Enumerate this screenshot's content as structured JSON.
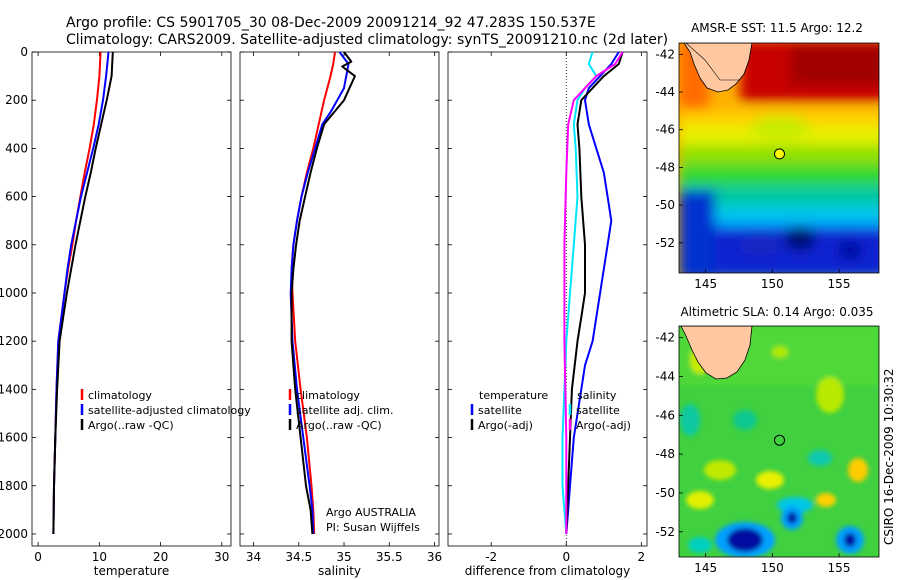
{
  "header": {
    "line1": "Argo profile: CS 5901705_30 08-Dec-2009 20091214_92 47.283S 150.537E",
    "line2": "Climatology: CARS2009. Satellite-adjusted climatology: synTS_20091210.nc (2d later)"
  },
  "colors": {
    "climatology": "#ff0000",
    "satellite": "#0000ff",
    "argo": "#000000",
    "sat_salinity": "#00e5ff",
    "argo_salinity": "#ff00ff",
    "marker": "#ffff00"
  },
  "chart_data": [
    {
      "type": "line",
      "xlabel": "temperature",
      "xlim": [
        -1,
        31.5
      ],
      "ylim": [
        2050,
        0
      ],
      "xticks": [
        0,
        10,
        20,
        30
      ],
      "yticks": [
        0,
        200,
        400,
        600,
        800,
        1000,
        1200,
        1400,
        1600,
        1800,
        2000
      ],
      "legend": {
        "position": "lower-middle",
        "entries": [
          "climatology",
          "satellite-adjusted climatology",
          "Argo(..raw -QC)"
        ]
      },
      "series": [
        {
          "name": "climatology",
          "color": "#ff0000",
          "x": [
            10.2,
            10.0,
            9.6,
            9.1,
            8.4,
            7.6,
            6.9,
            6.2,
            5.6,
            4.9,
            4.3,
            3.8,
            3.3,
            3.0,
            2.8,
            2.6,
            2.5
          ],
          "y": [
            0,
            100,
            200,
            300,
            400,
            500,
            600,
            700,
            800,
            900,
            1000,
            1100,
            1200,
            1400,
            1600,
            1800,
            2000
          ]
        },
        {
          "name": "satellite-adjusted climatology",
          "color": "#0000ff",
          "x": [
            11.5,
            11.1,
            10.6,
            9.9,
            9.0,
            8.0,
            7.0,
            6.2,
            5.4,
            4.8,
            4.3,
            3.8,
            3.3,
            3.0,
            2.8,
            2.6,
            2.5
          ],
          "y": [
            0,
            100,
            200,
            300,
            400,
            500,
            600,
            700,
            800,
            900,
            1000,
            1100,
            1200,
            1400,
            1600,
            1800,
            2000
          ]
        },
        {
          "name": "Argo(..raw -QC)",
          "color": "#000000",
          "x": [
            12.2,
            12.0,
            11.2,
            10.3,
            9.4,
            8.6,
            7.7,
            6.9,
            6.1,
            5.4,
            4.7,
            4.1,
            3.5,
            3.1,
            2.8,
            2.6,
            2.5
          ],
          "y": [
            0,
            100,
            200,
            300,
            400,
            500,
            600,
            700,
            800,
            900,
            1000,
            1100,
            1200,
            1400,
            1600,
            1800,
            2000
          ]
        }
      ]
    },
    {
      "type": "line",
      "xlabel": "salinity",
      "xlim": [
        33.85,
        36.05
      ],
      "ylim": [
        2050,
        0
      ],
      "xticks": [
        34,
        34.5,
        35,
        35.5,
        36
      ],
      "xticklabels": [
        "34",
        "34.5",
        "35",
        "35.5",
        "36"
      ],
      "legend": {
        "position": "lower-middle",
        "entries": [
          "climatology",
          "satellite adj. clim.",
          "Argo(..raw -QC)"
        ]
      },
      "annotation": [
        "Argo AUSTRALIA",
        "PI: Susan Wijffels"
      ],
      "series": [
        {
          "name": "climatology",
          "color": "#ff0000",
          "x": [
            34.9,
            34.88,
            34.85,
            34.78,
            34.72,
            34.66,
            34.59,
            34.53,
            34.48,
            34.44,
            34.42,
            34.43,
            34.46,
            34.52,
            34.59,
            34.64,
            34.66,
            34.67
          ],
          "y": [
            0,
            50,
            100,
            200,
            300,
            400,
            500,
            600,
            700,
            800,
            900,
            1000,
            1200,
            1400,
            1600,
            1800,
            1900,
            2000
          ]
        },
        {
          "name": "satellite adj. clim.",
          "color": "#0000ff",
          "x": [
            34.95,
            35.05,
            35.0,
            34.85,
            34.76,
            34.68,
            34.6,
            34.53,
            34.48,
            34.44,
            34.42,
            34.41,
            34.43,
            34.48,
            34.55,
            34.62,
            34.65,
            34.66
          ],
          "y": [
            0,
            50,
            150,
            250,
            300,
            400,
            500,
            600,
            700,
            800,
            900,
            1000,
            1200,
            1400,
            1600,
            1800,
            1900,
            2000
          ]
        },
        {
          "name": "Argo(..raw -QC)",
          "color": "#000000",
          "x": [
            35.0,
            35.08,
            34.98,
            35.12,
            35.0,
            34.78,
            34.7,
            34.63,
            34.57,
            34.51,
            34.47,
            34.44,
            34.42,
            34.42,
            34.46,
            34.52,
            34.58,
            34.63,
            34.65
          ],
          "y": [
            0,
            40,
            60,
            100,
            200,
            300,
            400,
            500,
            600,
            700,
            800,
            900,
            1000,
            1200,
            1400,
            1600,
            1800,
            1900,
            2000
          ]
        }
      ]
    },
    {
      "type": "line",
      "xlabel": "difference from climatology",
      "xlim": [
        -3.15,
        2.15
      ],
      "ylim": [
        2050,
        0
      ],
      "xticks": [
        -2,
        0,
        2
      ],
      "legend": {
        "position": "lower-middle",
        "entries": [
          "temperature",
          "satellite",
          "Argo(-adj)",
          "salinity",
          "satellite",
          "Argo(-adj)"
        ]
      },
      "series": [
        {
          "name": "satellite",
          "color": "#0000ff",
          "x": [
            1.4,
            1.2,
            0.9,
            0.6,
            0.5,
            0.6,
            0.8,
            1.0,
            1.1,
            1.2,
            1.1,
            0.9,
            0.7,
            0.5,
            0.4,
            0.2,
            0.1,
            0.05,
            0
          ],
          "y": [
            0,
            50,
            100,
            150,
            200,
            300,
            400,
            500,
            600,
            700,
            800,
            1000,
            1200,
            1300,
            1400,
            1600,
            1800,
            1900,
            2000
          ]
        },
        {
          "name": "Argo(-adj)",
          "color": "#000000",
          "x": [
            1.5,
            1.4,
            1.0,
            0.7,
            0.4,
            0.3,
            0.35,
            0.4,
            0.5,
            0.5,
            0.4,
            0.3,
            0.15,
            0.1,
            0.05,
            0.0
          ],
          "y": [
            0,
            50,
            100,
            150,
            200,
            300,
            400,
            600,
            800,
            1000,
            1100,
            1200,
            1400,
            1600,
            1800,
            2000
          ]
        },
        {
          "name": "satellite",
          "color": "#00e5ff",
          "x": [
            0.7,
            0.6,
            0.8,
            0.5,
            0.3,
            0.2,
            0.25,
            0.3,
            0.2,
            0.1,
            0.0,
            -0.05,
            -0.1,
            -0.1,
            -0.05,
            0.0
          ],
          "y": [
            0,
            50,
            100,
            150,
            200,
            300,
            400,
            600,
            800,
            1000,
            1200,
            1400,
            1600,
            1800,
            1900,
            2000
          ]
        },
        {
          "name": "Argo(-adj)",
          "color": "#ff00ff",
          "x": [
            1.5,
            1.3,
            0.8,
            0.5,
            0.2,
            0.05,
            0.0,
            -0.05,
            -0.05,
            0.0,
            0.0
          ],
          "y": [
            0,
            50,
            100,
            150,
            200,
            300,
            500,
            800,
            1200,
            1600,
            2000
          ]
        }
      ]
    },
    {
      "type": "heatmap",
      "title": "AMSR-E SST: 11.5 Argo: 12.2",
      "xlim": [
        143,
        158
      ],
      "ylim": [
        -53.6,
        -41.4
      ],
      "xticks": [
        145,
        150,
        155
      ],
      "yticks": [
        -42,
        -44,
        -46,
        -48,
        -50,
        -52
      ],
      "marker": {
        "lon": 150.537,
        "lat": -47.283
      }
    },
    {
      "type": "heatmap",
      "title": "Altimetric SLA: 0.14 Argo: 0.035",
      "xlim": [
        143,
        158
      ],
      "ylim": [
        -53.3,
        -41.4
      ],
      "xticks": [
        145,
        150,
        155
      ],
      "yticks": [
        -42,
        -44,
        -46,
        -48,
        -50,
        -52
      ],
      "marker": {
        "lon": 150.537,
        "lat": -47.283
      }
    }
  ],
  "side_label": "CSIRO 16-Dec-2009 10:30:32"
}
